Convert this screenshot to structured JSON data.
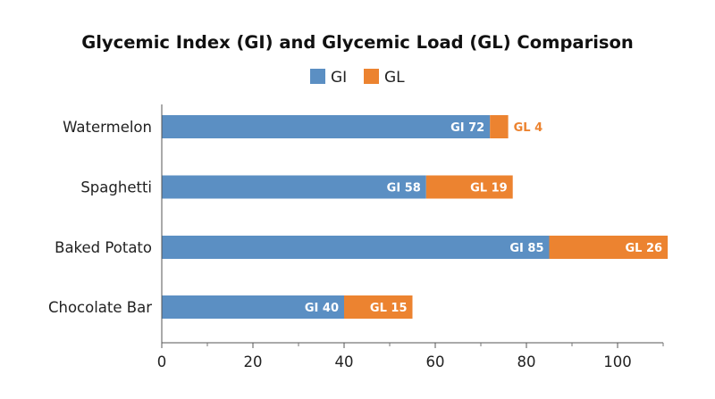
{
  "chart_data": {
    "type": "bar",
    "orientation": "horizontal",
    "stacked": true,
    "title": "Glycemic Index (GI) and Glycemic Load (GL) Comparison",
    "xlabel": "",
    "ylabel": "",
    "categories": [
      "Watermelon",
      "Spaghetti",
      "Baked Potato",
      "Chocolate Bar"
    ],
    "series": [
      {
        "name": "GI",
        "color": "#5b8fc3",
        "values": [
          72,
          58,
          85,
          40
        ],
        "labels": [
          "GI 72",
          "GI 58",
          "GI 85",
          "GI 40"
        ],
        "label_color": "#ffffff"
      },
      {
        "name": "GL",
        "color": "#ec8330",
        "values": [
          4,
          19,
          26,
          15
        ],
        "labels": [
          "GL 4",
          "GL 19",
          "GL 26",
          "GL 15"
        ],
        "label_color": "#ffffff",
        "small_label_color": "#ec8330"
      }
    ],
    "xlim": [
      0,
      110
    ],
    "xticks": [
      0,
      20,
      40,
      60,
      80,
      100
    ],
    "xtick_labels": [
      "0",
      "20",
      "40",
      "60",
      "80",
      "100"
    ],
    "minor_ticks": [
      10,
      30,
      50,
      70,
      90,
      110
    ],
    "grid": false,
    "legend_position": "top-center"
  }
}
